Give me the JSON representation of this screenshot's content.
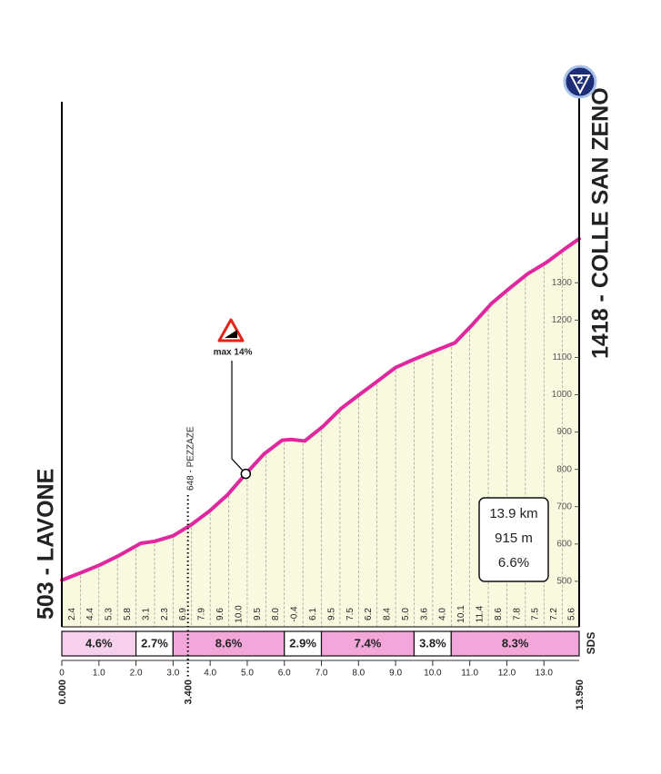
{
  "chart_data": {
    "type": "area",
    "start_label": "503 - LAVONE",
    "end_label": "1418 - COLLE SAN ZENO",
    "badge": "2",
    "side_label": "SDS",
    "x": [
      0,
      0.54,
      1.03,
      1.52,
      2.13,
      2.5,
      3.0,
      3.48,
      3.98,
      4.47,
      4.96,
      5.45,
      5.94,
      6.18,
      6.55,
      7.04,
      7.53,
      8.02,
      8.52,
      9.0,
      9.5,
      9.99,
      10.6,
      11.09,
      11.58,
      12.07,
      12.56,
      13.06,
      13.55,
      13.95
    ],
    "values": [
      503,
      524,
      544,
      568,
      602,
      607,
      622,
      651,
      688,
      732,
      788,
      841,
      878,
      880,
      876,
      915,
      963,
      1000,
      1037,
      1073,
      1095,
      1115,
      1139,
      1190,
      1244,
      1285,
      1324,
      1354,
      1390,
      1418
    ],
    "color": "#e0279e",
    "fill": "#f8f9df",
    "xlim": [
      0,
      13.95
    ],
    "ylim": [
      378,
      1790
    ],
    "yticks": [
      500,
      600,
      700,
      800,
      900,
      1000,
      1100,
      1200,
      1300
    ],
    "xticks": [
      0,
      {
        "value": 1,
        "label": "1.0"
      },
      {
        "value": 2,
        "label": "2.0"
      },
      {
        "value": 3,
        "label": "3.0"
      },
      {
        "value": 4,
        "label": "4.0"
      },
      {
        "value": 5,
        "label": "5.0"
      },
      {
        "value": 6,
        "label": "6.0"
      },
      {
        "value": 7,
        "label": "7.0"
      },
      {
        "value": 8,
        "label": "8.0"
      },
      {
        "value": 9,
        "label": "9.0"
      },
      {
        "value": 10,
        "label": "10.0"
      },
      {
        "value": 11,
        "label": "11.0"
      },
      {
        "value": 12,
        "label": "12.0"
      },
      {
        "value": 13,
        "label": "13.0"
      }
    ],
    "km_markers": [
      {
        "value": 0,
        "label": "0.000"
      },
      {
        "value": 3.4,
        "label": "3.400"
      },
      {
        "value": 13.95,
        "label": "13.950"
      }
    ],
    "gradients": {
      "edges": [
        0,
        0.5,
        1,
        1.5,
        2,
        2.5,
        3,
        3.5,
        4,
        4.5,
        5,
        5.5,
        6,
        6.5,
        7,
        7.5,
        8,
        8.5,
        9,
        9.5,
        10,
        10.5,
        11,
        11.5,
        12,
        12.5,
        13,
        13.5,
        13.95
      ],
      "values": [
        2.4,
        4.4,
        5.3,
        5.8,
        3.1,
        2.3,
        6.9,
        7.9,
        9.6,
        10,
        9.5,
        8,
        -0.4,
        6.1,
        9.5,
        7.5,
        6.2,
        8.4,
        5,
        3.6,
        4,
        10.1,
        11.4,
        8.6,
        7.8,
        7.5,
        7.2,
        5.6
      ],
      "value_labels": [
        "2.4",
        "4.4",
        "5.3",
        "5.8",
        "3.1",
        "2.3",
        "6.9",
        "7.9",
        "9.6",
        "10.0",
        "9.5",
        "8.0",
        "-0.4",
        "6.1",
        "9.5",
        "7.5",
        "6.2",
        "8.4",
        "5.0",
        "3.6",
        "4.0",
        "10.1",
        "11.4",
        "8.6",
        "7.8",
        "7.5",
        "7.2",
        "5.6"
      ]
    },
    "bands": {
      "edges": [
        0,
        2,
        3,
        6,
        7,
        9.5,
        10.5,
        13.95
      ],
      "values": [
        4.6,
        2.7,
        8.6,
        2.9,
        7.4,
        3.8,
        8.3
      ],
      "value_labels": [
        "4.6%",
        "2.7%",
        "8.6%",
        "2.9%",
        "7.4%",
        "3.8%",
        "8.3%"
      ],
      "colors": [
        "#f6d0ec",
        "#ffffff",
        "#f2a6da",
        "#ffffff",
        "#f2a6da",
        "#ffffff",
        "#f2a6da"
      ]
    },
    "summary": [
      "13.9 km",
      "915 m",
      "6.6%"
    ],
    "waypoint": {
      "x": 3.4,
      "label": "648 - PEZZAZE"
    },
    "max_gradient": {
      "x": 4.96,
      "y": 788,
      "label": "max 14%"
    }
  }
}
